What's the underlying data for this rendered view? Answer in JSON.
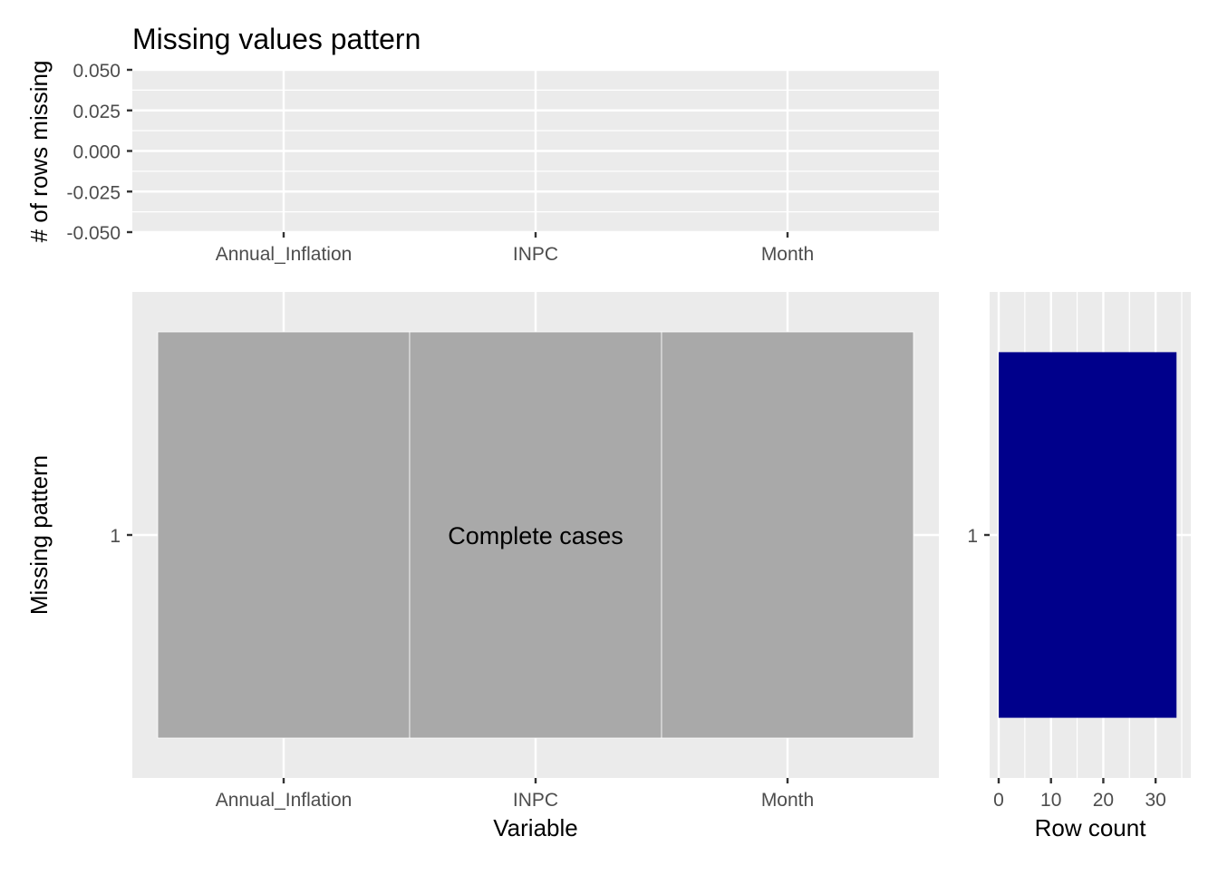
{
  "chart_data": [
    {
      "type": "bar",
      "title": "Missing values pattern",
      "xlabel": "",
      "ylabel": "# of rows missing",
      "categories": [
        "Annual_Inflation",
        "INPC",
        "Month"
      ],
      "values": [
        0,
        0,
        0
      ],
      "ylim": [
        -0.05,
        0.05
      ],
      "yticks": [
        "0.050",
        "0.025",
        "0.000",
        "-0.025",
        "-0.050"
      ],
      "grid": true
    },
    {
      "type": "heatmap",
      "xlabel": "Variable",
      "ylabel": "Missing pattern",
      "categories": [
        "Annual_Inflation",
        "INPC",
        "Month"
      ],
      "patterns": [
        "1"
      ],
      "cells": [
        [
          "complete",
          "complete",
          "complete"
        ]
      ],
      "annotation": "Complete cases",
      "colors": {
        "complete": "#a9a9a9"
      },
      "grid": true
    },
    {
      "type": "bar",
      "orientation": "horizontal",
      "xlabel": "Row count",
      "ylabel": "",
      "categories": [
        "1"
      ],
      "values": [
        34
      ],
      "xlim": [
        0,
        35
      ],
      "xticks": [
        0,
        10,
        20,
        30
      ],
      "color": "#00008b",
      "grid": true
    }
  ]
}
